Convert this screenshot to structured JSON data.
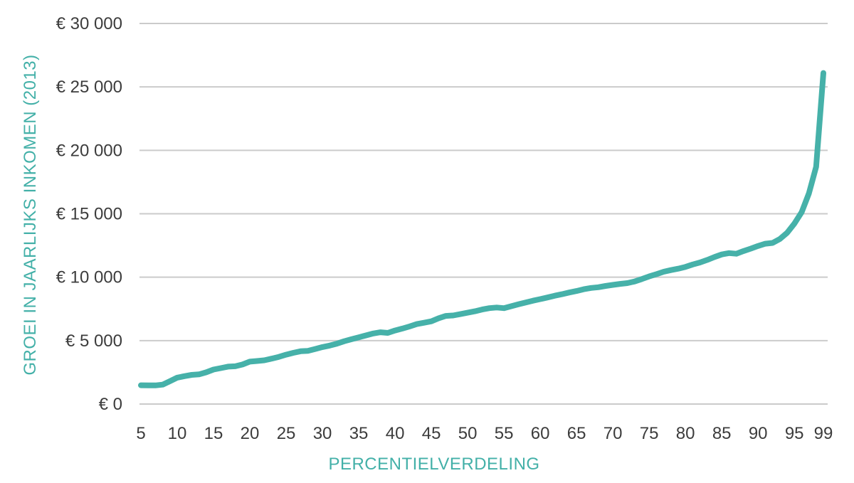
{
  "chart_data": {
    "type": "line",
    "title": "",
    "xlabel": "PERCENTIELVERDELING",
    "ylabel": "GROEI IN JAARLIJKS INKOMEN (2013)",
    "legend_position": "none",
    "grid": "horizontal",
    "xlim": [
      5,
      99
    ],
    "ylim": [
      0,
      30000
    ],
    "x": [
      5,
      6,
      7,
      8,
      9,
      10,
      11,
      12,
      13,
      14,
      15,
      16,
      17,
      18,
      19,
      20,
      21,
      22,
      23,
      24,
      25,
      26,
      27,
      28,
      29,
      30,
      31,
      32,
      33,
      34,
      35,
      36,
      37,
      38,
      39,
      40,
      41,
      42,
      43,
      44,
      45,
      46,
      47,
      48,
      49,
      50,
      51,
      52,
      53,
      54,
      55,
      56,
      57,
      58,
      59,
      60,
      61,
      62,
      63,
      64,
      65,
      66,
      67,
      68,
      69,
      70,
      71,
      72,
      73,
      74,
      75,
      76,
      77,
      78,
      79,
      80,
      81,
      82,
      83,
      84,
      85,
      86,
      87,
      88,
      89,
      90,
      91,
      92,
      93,
      94,
      95,
      96,
      97,
      98,
      99
    ],
    "series": [
      {
        "name": "groei in jaarlijks inkomen",
        "values": [
          1480,
          1470,
          1470,
          1530,
          1800,
          2080,
          2200,
          2300,
          2340,
          2500,
          2720,
          2830,
          2950,
          2980,
          3120,
          3340,
          3390,
          3450,
          3580,
          3720,
          3890,
          4040,
          4160,
          4190,
          4340,
          4490,
          4610,
          4760,
          4950,
          5110,
          5260,
          5410,
          5560,
          5660,
          5610,
          5800,
          5950,
          6120,
          6300,
          6410,
          6520,
          6760,
          6950,
          6980,
          7090,
          7200,
          7310,
          7450,
          7560,
          7610,
          7560,
          7710,
          7860,
          8010,
          8150,
          8270,
          8400,
          8540,
          8660,
          8790,
          8910,
          9050,
          9150,
          9210,
          9310,
          9390,
          9470,
          9530,
          9660,
          9850,
          10060,
          10240,
          10430,
          10560,
          10670,
          10810,
          11000,
          11160,
          11360,
          11590,
          11790,
          11900,
          11850,
          12060,
          12250,
          12460,
          12640,
          12700,
          13010,
          13500,
          14220,
          15120,
          16600,
          18700,
          26100
        ]
      }
    ],
    "x_ticks": [
      {
        "v": 5,
        "label": "5"
      },
      {
        "v": 10,
        "label": "10"
      },
      {
        "v": 15,
        "label": "15"
      },
      {
        "v": 20,
        "label": "20"
      },
      {
        "v": 25,
        "label": "25"
      },
      {
        "v": 30,
        "label": "30"
      },
      {
        "v": 35,
        "label": "35"
      },
      {
        "v": 40,
        "label": "40"
      },
      {
        "v": 45,
        "label": "45"
      },
      {
        "v": 50,
        "label": "50"
      },
      {
        "v": 55,
        "label": "55"
      },
      {
        "v": 60,
        "label": "60"
      },
      {
        "v": 65,
        "label": "65"
      },
      {
        "v": 70,
        "label": "70"
      },
      {
        "v": 75,
        "label": "75"
      },
      {
        "v": 80,
        "label": "80"
      },
      {
        "v": 85,
        "label": "85"
      },
      {
        "v": 90,
        "label": "90"
      },
      {
        "v": 95,
        "label": "95"
      },
      {
        "v": 99,
        "label": "99"
      }
    ],
    "y_ticks": [
      {
        "v": 0,
        "label": "€ 0"
      },
      {
        "v": 5000,
        "label": "€ 5 000"
      },
      {
        "v": 10000,
        "label": "€ 10 000"
      },
      {
        "v": 15000,
        "label": "€ 15 000"
      },
      {
        "v": 20000,
        "label": "€ 20 000"
      },
      {
        "v": 25000,
        "label": "€ 25 000"
      },
      {
        "v": 30000,
        "label": "€ 30 000"
      }
    ],
    "colors": {
      "line": "#46b1a9",
      "axis_title": "#43b0a8",
      "tick_label": "#3c3c3c",
      "gridline": "#cbcbcb",
      "background": "#ffffff"
    }
  }
}
